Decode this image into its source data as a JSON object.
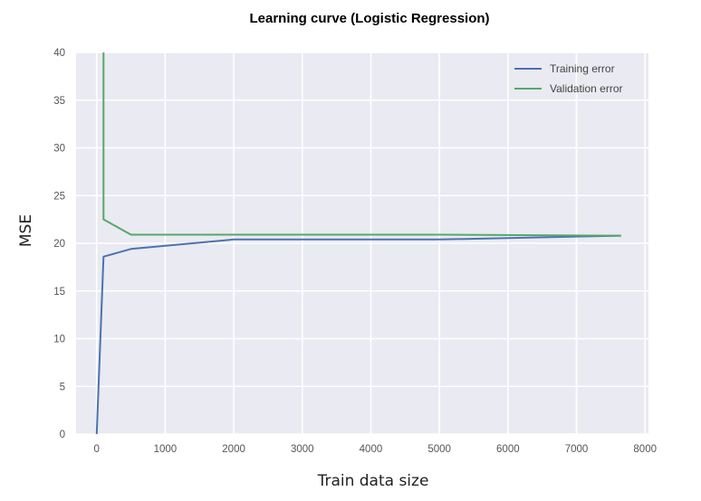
{
  "chart_data": {
    "type": "line",
    "title": "Learning curve (Logistic Regression)",
    "xlabel": "Train data size",
    "ylabel": "MSE",
    "xlim": [
      -300,
      8050
    ],
    "ylim": [
      0,
      40
    ],
    "xticks": [
      0,
      1000,
      2000,
      3000,
      4000,
      5000,
      6000,
      7000,
      8000
    ],
    "yticks": [
      0,
      5,
      10,
      15,
      20,
      25,
      30,
      35,
      40
    ],
    "grid": true,
    "legend_position": "top-right",
    "series": [
      {
        "name": "Training error",
        "color": "#4c72b0",
        "x": [
          1,
          100,
          500,
          2000,
          5000,
          7650
        ],
        "y": [
          0,
          18.6,
          19.4,
          20.4,
          20.4,
          20.8
        ]
      },
      {
        "name": "Validation error",
        "color": "#55a868",
        "x": [
          100,
          100,
          500,
          2000,
          5000,
          7650
        ],
        "y": [
          40,
          22.5,
          20.9,
          20.9,
          20.9,
          20.8
        ]
      }
    ]
  },
  "style": {
    "plot_background": "#eaeaf2",
    "grid_color": "#ffffff"
  }
}
